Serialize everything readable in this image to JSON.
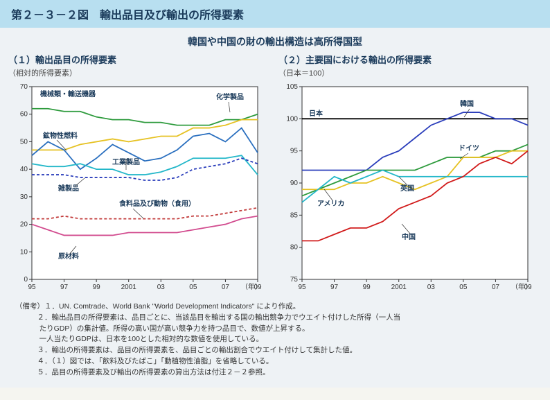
{
  "header": "第２－３－２図　輸出品目及び輸出の所得要素",
  "subtitle": "韓国や中国の財の輸出構造は高所得国型",
  "chart1": {
    "title": "（１）輸出品目の所得要素",
    "subtitle": "（相対的所得要素）",
    "x_unit": "（年）",
    "x_ticks": [
      "95",
      "97",
      "99",
      "2001",
      "03",
      "05",
      "07",
      "09"
    ],
    "y_ticks": [
      0,
      10,
      20,
      30,
      40,
      50,
      60,
      70
    ],
    "ylim": [
      0,
      70
    ],
    "series": {
      "machinery": {
        "label": "機械類・輸送機器",
        "color": "#2e9b3d",
        "dash": "",
        "data": [
          62,
          62,
          61,
          61,
          59,
          58,
          58,
          57,
          57,
          56,
          56,
          56,
          58,
          58,
          60
        ]
      },
      "chemical": {
        "label": "化学製品",
        "color": "#e6c223",
        "dash": "",
        "data": [
          47,
          47,
          47,
          49,
          50,
          51,
          50,
          51,
          52,
          52,
          55,
          55,
          56,
          58,
          58
        ]
      },
      "minerals": {
        "label": "鉱物性燃料",
        "color": "#2a6fbf",
        "dash": "",
        "data": [
          45,
          50,
          47,
          40,
          44,
          49,
          46,
          43,
          44,
          47,
          52,
          53,
          50,
          55,
          46
        ]
      },
      "industrial": {
        "label": "工業製品",
        "color": "#23b7c9",
        "dash": "",
        "data": [
          42,
          41,
          41,
          42,
          40,
          40,
          38,
          38,
          39,
          41,
          44,
          44,
          44,
          45,
          38
        ]
      },
      "misc": {
        "label": "雑製品",
        "color": "#2a3dbb",
        "dash": "4,3",
        "data": [
          38,
          38,
          38,
          37,
          37,
          37,
          37,
          36,
          36,
          37,
          40,
          41,
          42,
          44,
          42
        ]
      },
      "food": {
        "label": "食料品及び動物（食用）",
        "color": "#c23a3a",
        "dash": "4,3",
        "data": [
          22,
          22,
          23,
          22,
          22,
          22,
          22,
          22,
          22,
          22,
          23,
          23,
          24,
          25,
          26
        ]
      },
      "raw": {
        "label": "原材料",
        "color": "#d24c8f",
        "dash": "",
        "data": [
          20,
          18,
          16,
          16,
          16,
          16,
          17,
          17,
          17,
          17,
          18,
          19,
          20,
          22,
          23
        ]
      }
    }
  },
  "chart2": {
    "title": "（２）主要国における輸出の所得要素",
    "subtitle": "（日本＝100）",
    "x_unit": "（年）",
    "x_ticks": [
      "95",
      "97",
      "99",
      "2001",
      "03",
      "05",
      "07",
      "09"
    ],
    "y_ticks": [
      75,
      80,
      85,
      90,
      95,
      100,
      105
    ],
    "ylim": [
      75,
      105
    ],
    "series": {
      "japan": {
        "label": "日本",
        "color": "#000000",
        "dash": "",
        "data": [
          100,
          100,
          100,
          100,
          100,
          100,
          100,
          100,
          100,
          100,
          100,
          100,
          100,
          100,
          100
        ]
      },
      "korea": {
        "label": "韓国",
        "color": "#2a3dbb",
        "dash": "",
        "data": [
          92,
          92,
          92,
          92,
          92,
          94,
          95,
          97,
          99,
          100,
          101,
          101,
          100,
          100,
          99
        ]
      },
      "germany": {
        "label": "ドイツ",
        "color": "#2e9b3d",
        "dash": "",
        "data": [
          88,
          89,
          90,
          91,
          92,
          92,
          92,
          92,
          93,
          94,
          94,
          94,
          95,
          95,
          96
        ]
      },
      "uk": {
        "label": "英国",
        "color": "#e6c223",
        "dash": "",
        "data": [
          89,
          89,
          89,
          90,
          90,
          91,
          90,
          89,
          90,
          91,
          94,
          94,
          94,
          95,
          95
        ]
      },
      "usa": {
        "label": "アメリカ",
        "color": "#23b7c9",
        "dash": "",
        "data": [
          87,
          89,
          91,
          90,
          91,
          92,
          91,
          91,
          91,
          91,
          91,
          91,
          91,
          91,
          91
        ]
      },
      "china": {
        "label": "中国",
        "color": "#d11a1a",
        "dash": "",
        "data": [
          81,
          81,
          82,
          83,
          83,
          84,
          86,
          87,
          88,
          90,
          91,
          93,
          94,
          93,
          95
        ]
      }
    }
  },
  "notes": {
    "lead": "（備考）",
    "n1": "１．UN. Comtrade、World Bank \"World Development Indicators\" により作成。",
    "n2a": "２．輸出品目の所得要素は、品目ごとに、当該品目を輸出する国の輸出競争力でウエイト付けした所得（一人当",
    "n2b": "たりGDP）の集計値。所得の高い国が高い競争力を持つ品目で、数値が上昇する。",
    "n2c": "一人当たりGDPは、日本を100とした相対的な数値を使用している。",
    "n3": "３．輸出の所得要素は、品目の所得要素を、品目ごとの輸出割合でウエイト付けして集計した値。",
    "n4": "４．（１）図では、「飲料及びたばこ」「動植物性油脂」を省略している。",
    "n5": "５．品目の所得要素及び輸出の所得要素の算出方法は付注２－２参照。"
  }
}
